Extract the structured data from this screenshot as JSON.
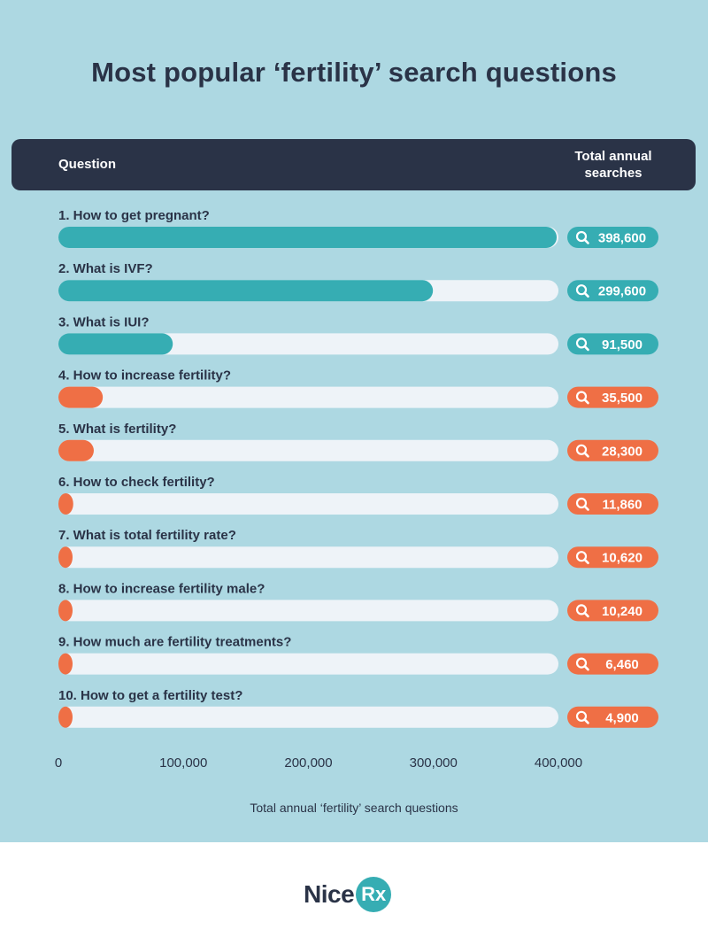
{
  "title": "Most popular ‘fertility’ search questions",
  "header": {
    "question_label": "Question",
    "total_label_line1": "Total annual",
    "total_label_line2": "searches"
  },
  "colors": {
    "background": "#add8e2",
    "header": "#2a3347",
    "track": "#eef3f8",
    "teal": "#36adb3",
    "orange": "#ef6f45"
  },
  "badge_icon": "search-icon",
  "chart_data": {
    "type": "bar",
    "orientation": "horizontal",
    "title": "Most popular ‘fertility’ search questions",
    "xlabel": "Total annual ‘fertility’ search questions",
    "xlim": [
      0,
      400000
    ],
    "xticks": [
      0,
      100000,
      200000,
      300000,
      400000
    ],
    "xtick_labels": [
      "0",
      "100,000",
      "200,000",
      "300,000",
      "400,000"
    ],
    "categories": [
      "1. How to get pregnant?",
      "2. What is IVF?",
      "3. What is IUI?",
      "4. How to increase fertility?",
      "5. What is fertility?",
      "6. How to check fertility?",
      "7. What is total fertility rate?",
      "8. How to increase fertility male?",
      "9. How much are fertility treatments?",
      "10. How to get a fertility test?"
    ],
    "values": [
      398600,
      299600,
      91500,
      35500,
      28300,
      11860,
      10620,
      10240,
      6460,
      4900
    ],
    "value_labels": [
      "398,600",
      "299,600",
      "91,500",
      "35,500",
      "28,300",
      "11,860",
      "10,620",
      "10,240",
      "6,460",
      "4,900"
    ],
    "bar_colors": [
      "teal",
      "teal",
      "teal",
      "orange",
      "orange",
      "orange",
      "orange",
      "orange",
      "orange",
      "orange"
    ],
    "grid": false,
    "legend": "none"
  },
  "footer": {
    "logo_nice": "Nice",
    "logo_rx": "Rx"
  }
}
